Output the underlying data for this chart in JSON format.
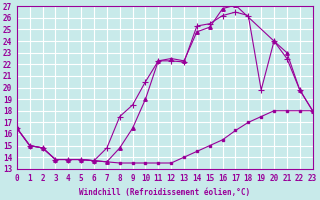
{
  "xlabel": "Windchill (Refroidissement éolien,°C)",
  "ylabel": "",
  "background_color": "#c8eaea",
  "grid_color": "#ffffff",
  "line_color": "#990099",
  "xlim": [
    0,
    23
  ],
  "ylim": [
    13,
    27
  ],
  "xticks": [
    0,
    1,
    2,
    3,
    4,
    5,
    6,
    7,
    8,
    9,
    10,
    11,
    12,
    13,
    14,
    15,
    16,
    17,
    18,
    19,
    20,
    21,
    22,
    23
  ],
  "yticks": [
    13,
    14,
    15,
    16,
    17,
    18,
    19,
    20,
    21,
    22,
    23,
    24,
    25,
    26,
    27
  ],
  "line1_x": [
    0,
    1,
    2,
    3,
    4,
    5,
    6,
    7,
    8,
    9,
    10,
    11,
    12,
    13,
    14,
    15,
    16,
    17,
    20,
    21,
    22,
    23
  ],
  "line1_y": [
    16.5,
    15.0,
    14.8,
    13.8,
    13.8,
    13.8,
    13.7,
    13.6,
    14.8,
    16.5,
    19.0,
    22.3,
    22.5,
    22.3,
    24.8,
    25.2,
    26.8,
    27.1,
    24.0,
    23.0,
    19.8,
    18.0
  ],
  "line2_x": [
    0,
    1,
    2,
    3,
    4,
    5,
    6,
    7,
    8,
    9,
    10,
    11,
    12,
    13,
    14,
    15,
    16,
    17,
    18,
    19,
    20,
    21,
    22,
    23
  ],
  "line2_y": [
    16.5,
    15.0,
    14.8,
    13.8,
    13.8,
    13.8,
    13.7,
    14.8,
    17.5,
    18.5,
    20.5,
    22.3,
    22.3,
    22.2,
    25.3,
    25.5,
    26.2,
    26.5,
    26.2,
    19.8,
    24.0,
    22.5,
    19.8,
    18.0
  ],
  "line3_x": [
    0,
    1,
    2,
    3,
    4,
    5,
    6,
    7,
    8,
    9,
    10,
    11,
    12,
    13,
    14,
    15,
    16,
    17,
    18,
    19,
    20,
    21,
    22,
    23
  ],
  "line3_y": [
    16.5,
    15.0,
    14.8,
    13.8,
    13.8,
    13.8,
    13.7,
    13.6,
    13.5,
    13.5,
    13.5,
    13.5,
    13.5,
    14.0,
    14.5,
    15.0,
    15.5,
    16.3,
    17.0,
    17.5,
    18.0,
    18.0,
    18.0,
    18.0
  ]
}
